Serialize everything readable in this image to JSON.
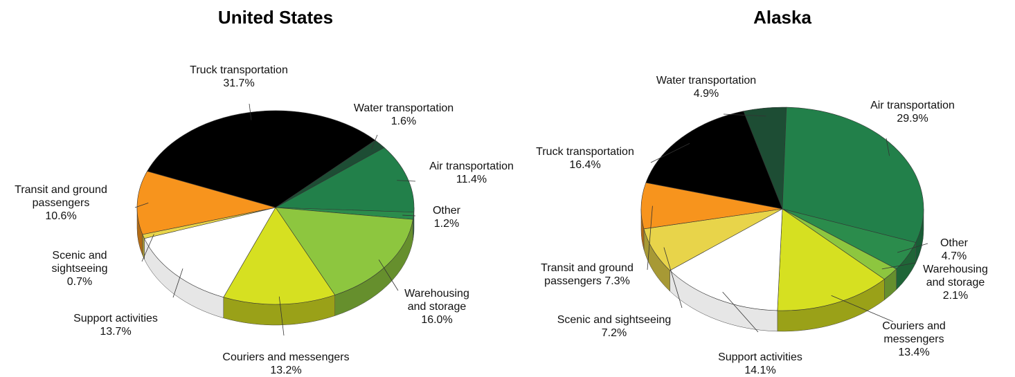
{
  "chart_data": [
    {
      "type": "pie",
      "title": "United States",
      "categories": [
        "Truck transportation",
        "Water transportation",
        "Air transportation",
        "Other",
        "Warehousing and storage",
        "Couriers and messengers",
        "Support activities",
        "Scenic and sightseeing",
        "Transit and ground passengers"
      ],
      "values": [
        31.7,
        1.6,
        11.4,
        1.2,
        16.0,
        13.2,
        13.7,
        0.7,
        10.6
      ],
      "value_labels": [
        "31.7%",
        "1.6%",
        "11.4%",
        "1.2%",
        "16.0%",
        "13.2%",
        "13.7%",
        "0.7%",
        "10.6%"
      ],
      "colors": [
        "#000000",
        "#1d4d34",
        "#22804a",
        "#2b8c4c",
        "#8dc63f",
        "#d6e021",
        "#ffffff",
        "#e8d44a",
        "#f7941d"
      ]
    },
    {
      "type": "pie",
      "title": "Alaska",
      "categories": [
        "Water transportation",
        "Air transportation",
        "Other",
        "Warehousing and storage",
        "Couriers and messengers",
        "Support activities",
        "Scenic and sightseeing",
        "Transit and ground passengers",
        "Truck transportation"
      ],
      "values": [
        4.9,
        29.9,
        4.7,
        2.1,
        13.4,
        14.1,
        7.2,
        7.3,
        16.4
      ],
      "value_labels": [
        "4.9%",
        "29.9%",
        "4.7%",
        "2.1%",
        "13.4%",
        "14.1%",
        "7.2%",
        "7.3%",
        "16.4%"
      ],
      "colors": [
        "#1d4d34",
        "#22804a",
        "#2b8c4c",
        "#8dc63f",
        "#d6e021",
        "#ffffff",
        "#e8d44a",
        "#f7941d",
        "#000000"
      ]
    }
  ]
}
